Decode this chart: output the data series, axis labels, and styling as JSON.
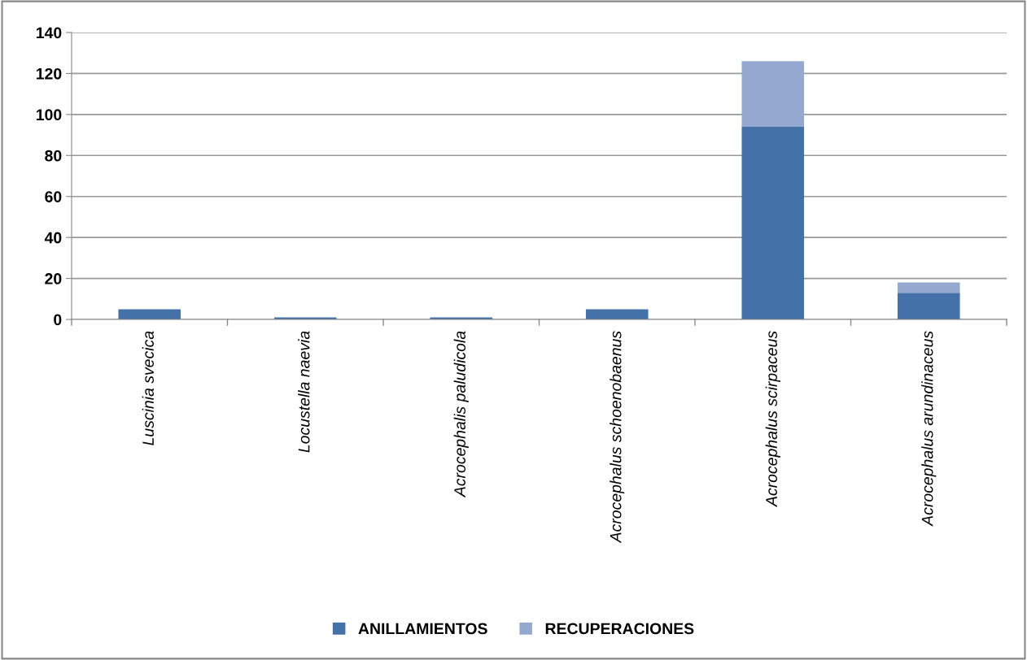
{
  "chart_data": {
    "type": "bar",
    "stacked": true,
    "categories": [
      "Luscinia svecica",
      "Locustella naevia",
      "Acrocephalis paludicola",
      "Acrocephalus schoenobaenus",
      "Acrocephalus scirpaceus",
      "Acrocephalus arundinaceus"
    ],
    "series": [
      {
        "name": "ANILLAMIENTOS",
        "color": "#4472a8",
        "values": [
          5,
          1,
          1,
          5,
          94,
          13
        ]
      },
      {
        "name": "RECUPERACIONES",
        "color": "#95a9d0",
        "values": [
          0,
          0,
          0,
          0,
          32,
          5
        ]
      }
    ],
    "ylim": [
      0,
      140
    ],
    "yticks": [
      0,
      20,
      40,
      60,
      80,
      100,
      120,
      140
    ],
    "grid": "y",
    "legend": "bottom"
  }
}
